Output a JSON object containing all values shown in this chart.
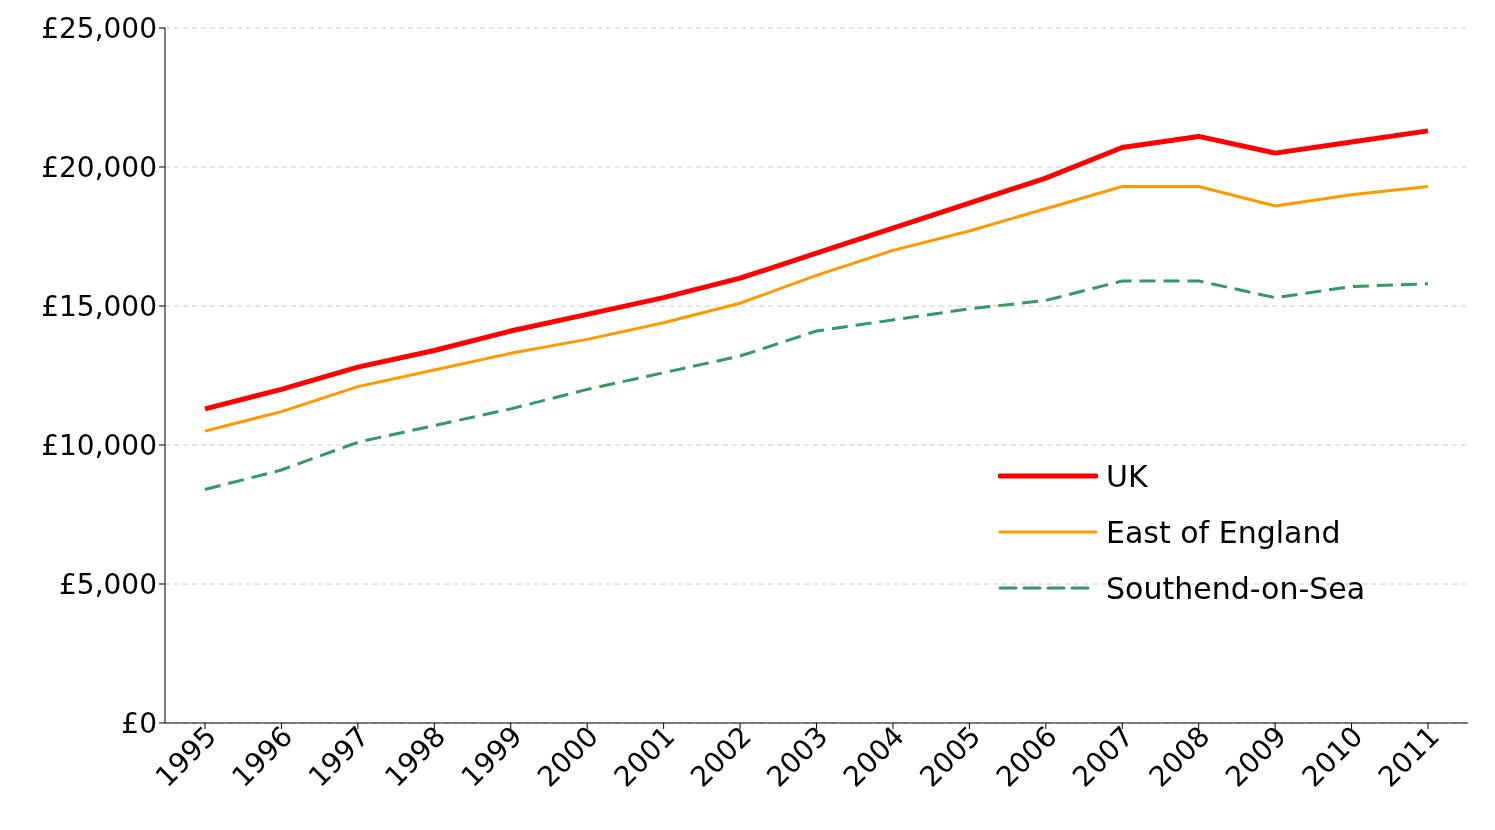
{
  "chart_data": {
    "type": "line",
    "categories": [
      "1995",
      "1996",
      "1997",
      "1998",
      "1999",
      "2000",
      "2001",
      "2002",
      "2003",
      "2004",
      "2005",
      "2006",
      "2007",
      "2008",
      "2009",
      "2010",
      "2011"
    ],
    "series": [
      {
        "name": "UK",
        "color": "#ff0000",
        "line_style": "solid",
        "values": [
          11300,
          12000,
          12800,
          13400,
          14100,
          14700,
          15300,
          16000,
          16900,
          17800,
          18700,
          19600,
          20700,
          21100,
          20500,
          20900,
          21300
        ]
      },
      {
        "name": "East of England",
        "color": "#ff9900",
        "line_style": "solid",
        "values": [
          10500,
          11200,
          12100,
          12700,
          13300,
          13800,
          14400,
          15100,
          16100,
          17000,
          17700,
          18500,
          19300,
          19300,
          18600,
          19000,
          19300
        ]
      },
      {
        "name": "Southend-on-Sea",
        "color": "#339966",
        "line_style": "dashed",
        "values": [
          8400,
          9100,
          10100,
          10700,
          11300,
          12000,
          12600,
          13200,
          14100,
          14500,
          14900,
          15200,
          15900,
          15900,
          15300,
          15700,
          15800
        ]
      }
    ],
    "ylim": [
      0,
      25000
    ],
    "yticks": [
      {
        "value": 0,
        "label": "£0"
      },
      {
        "value": 5000,
        "label": "£5,000"
      },
      {
        "value": 10000,
        "label": "£10,000"
      },
      {
        "value": 15000,
        "label": "£15,000"
      },
      {
        "value": 20000,
        "label": "£20,000"
      },
      {
        "value": 25000,
        "label": "£25,000"
      }
    ],
    "grid": "y",
    "legend": "right",
    "marker": "none"
  }
}
